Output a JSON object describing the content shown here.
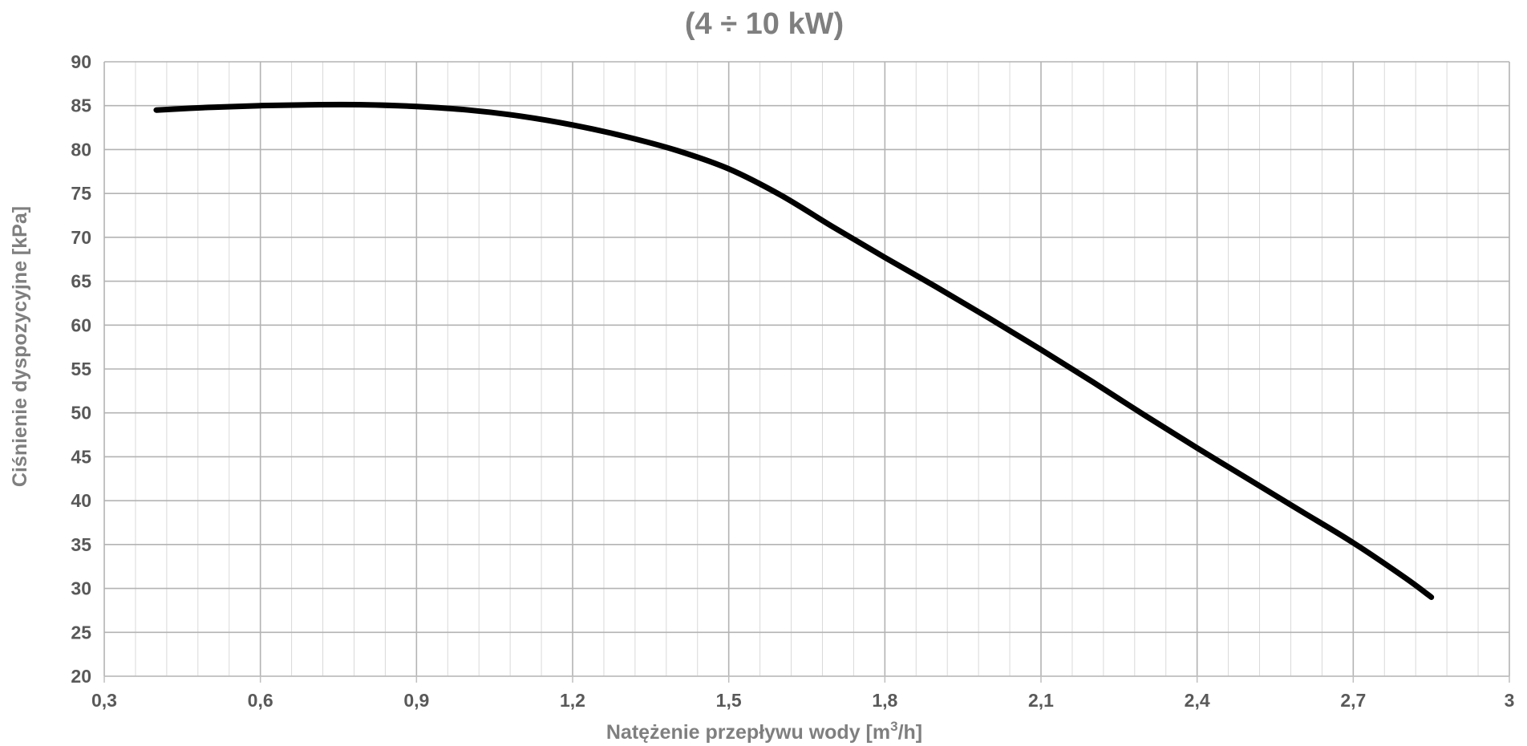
{
  "chart_data": {
    "type": "line",
    "title": "(4 ÷ 10 kW)",
    "xlabel_main": "Natężenie przepływu wody [m",
    "xlabel_sup": "3",
    "xlabel_tail": "/h]",
    "ylabel": "Ciśnienie dyspozycyjne [kPa]",
    "xlim": [
      0.3,
      3.0
    ],
    "ylim": [
      20,
      90
    ],
    "x_major_step": 0.3,
    "x_minor_step": 0.06,
    "y_major_step": 5,
    "grid": true,
    "x_ticks": [
      "0,3",
      "0,6",
      "0,9",
      "1,2",
      "1,5",
      "1,8",
      "2,1",
      "2,4",
      "2,7",
      "3"
    ],
    "y_ticks": [
      "20",
      "25",
      "30",
      "35",
      "40",
      "45",
      "50",
      "55",
      "60",
      "65",
      "70",
      "75",
      "80",
      "85",
      "90"
    ],
    "series": [
      {
        "color": "#000000",
        "x": [
          0.4,
          0.5,
          0.6,
          0.7,
          0.8,
          0.9,
          1.0,
          1.1,
          1.2,
          1.3,
          1.4,
          1.5,
          1.6,
          1.7,
          1.8,
          1.9,
          2.0,
          2.1,
          2.2,
          2.3,
          2.4,
          2.5,
          2.6,
          2.7,
          2.8,
          2.85
        ],
        "y": [
          84.5,
          84.8,
          85.0,
          85.1,
          85.1,
          84.9,
          84.5,
          83.8,
          82.8,
          81.5,
          79.9,
          77.8,
          74.8,
          71.2,
          67.7,
          64.3,
          60.8,
          57.2,
          53.5,
          49.7,
          46.0,
          42.4,
          38.8,
          35.2,
          31.2,
          29.0
        ]
      }
    ]
  }
}
